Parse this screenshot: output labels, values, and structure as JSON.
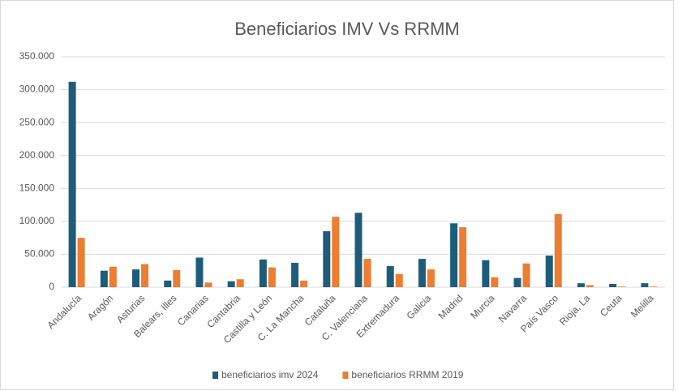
{
  "chart_data": {
    "type": "bar",
    "title": "Beneficiarios IMV Vs RRMM",
    "categories": [
      "Andalucía",
      "Aragón",
      "Asturias",
      "Balears, Illes",
      "Canarias",
      "Cantabria",
      "Castilla y León",
      "C. La Mancha",
      "Cataluña",
      "C. Valenciana",
      "Extremadura",
      "Galicia",
      "Madrid",
      "Murcia",
      "Navarra",
      "País Vasco",
      "Rioja, La",
      "Ceuta",
      "Melilla"
    ],
    "series": [
      {
        "name": "beneficiarios imv 2024",
        "color": "#1f5c7a",
        "values": [
          312000,
          25000,
          27000,
          10000,
          45000,
          9000,
          42000,
          37000,
          85000,
          113000,
          32000,
          43000,
          97000,
          41000,
          14000,
          48000,
          6000,
          5000,
          6000
        ]
      },
      {
        "name": "beneficiarios RRMM 2019",
        "color": "#ed7d31",
        "values": [
          75000,
          31000,
          35000,
          26000,
          7000,
          12000,
          30000,
          10000,
          107000,
          43000,
          20000,
          27000,
          91000,
          15000,
          36000,
          111000,
          3000,
          1000,
          1000
        ]
      }
    ],
    "ylim": [
      0,
      350000
    ],
    "yticks": [
      0,
      {
        "value": 50000,
        "label": "50.000"
      },
      {
        "value": 100000,
        "label": "100.000"
      },
      {
        "value": 150000,
        "label": "150.000"
      },
      {
        "value": 200000,
        "label": "200.000"
      },
      {
        "value": 250000,
        "label": "250.000"
      },
      {
        "value": 300000,
        "label": "300.000"
      },
      {
        "value": 350000,
        "label": "350.000"
      }
    ],
    "grid": true,
    "legend": "bottom"
  }
}
